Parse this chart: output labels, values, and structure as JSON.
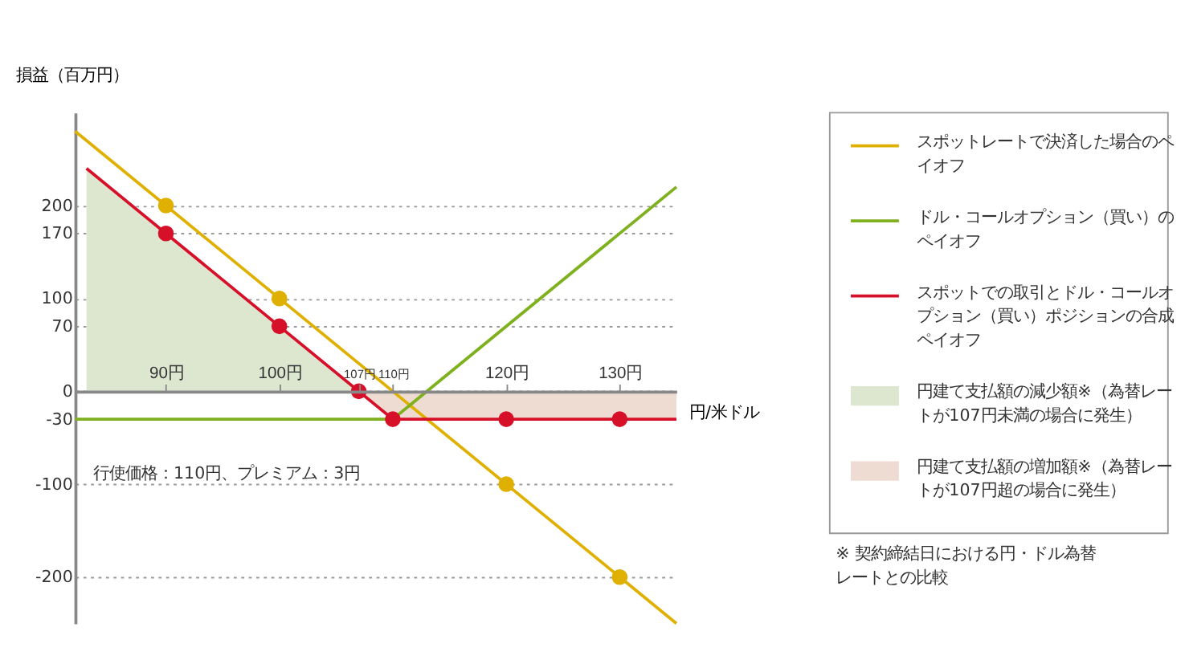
{
  "chart_data": {
    "type": "line",
    "ylabel": "損益（百万円）",
    "xlabel": "円/米ドル",
    "xlim": [
      82,
      135
    ],
    "ylim": [
      -250,
      300
    ],
    "xticks": [
      {
        "value": 90,
        "label": "90円"
      },
      {
        "value": 100,
        "label": "100円"
      },
      {
        "value": 107,
        "label": "107円"
      },
      {
        "value": 110,
        "label": "110円"
      },
      {
        "value": 120,
        "label": "120円"
      },
      {
        "value": 130,
        "label": "130円"
      }
    ],
    "yticks": [
      -200,
      -100,
      -30,
      0,
      70,
      100,
      170,
      200
    ],
    "grid": "y",
    "legend": "right",
    "line_style": "solid",
    "series": [
      {
        "name": "円建て支払額の減少額※（為替レートが107円未満の場合に発生）",
        "type": "area",
        "color": "#dde6cf",
        "x": [
          83,
          90,
          100,
          107
        ],
        "values": [
          240,
          170,
          70,
          0
        ]
      },
      {
        "name": "円建て支払額の増加額※（為替レートが107円超の場合に発生）",
        "type": "area",
        "color": "#eedcd3",
        "x": [
          107,
          110,
          135
        ],
        "values": [
          0,
          -30,
          -30
        ]
      },
      {
        "name": "スポットレートで決済した場合のペイオフ",
        "color": "#e0b000",
        "x": [
          82,
          135
        ],
        "values": [
          280,
          -250
        ]
      },
      {
        "name": "ドル・コールオプション（買い）のペイオフ",
        "color": "#7fb01e",
        "x": [
          82,
          110,
          135
        ],
        "values": [
          -30,
          -30,
          220
        ]
      },
      {
        "name": "スポットでの取引とドル・コールオプション（買い）ポジションの合成ペイオフ",
        "color": "#d7102a",
        "x": [
          83,
          110,
          135
        ],
        "values": [
          240,
          -30,
          -30
        ]
      },
      {
        "type": "scatter",
        "color": "#e0b000",
        "marker": "circle",
        "x": [
          90,
          100,
          120,
          130
        ],
        "values": [
          200,
          100,
          -100,
          -200
        ]
      },
      {
        "type": "scatter",
        "color": "#d7102a",
        "marker": "circle",
        "x": [
          90,
          100,
          107,
          110,
          120,
          130
        ],
        "values": [
          170,
          70,
          0,
          -30,
          -30,
          -30
        ]
      }
    ],
    "annotations": [
      "行使価格：110円、プレミアム：3円",
      "※ 契約締結日における円・ドル為替レートとの比較"
    ]
  }
}
